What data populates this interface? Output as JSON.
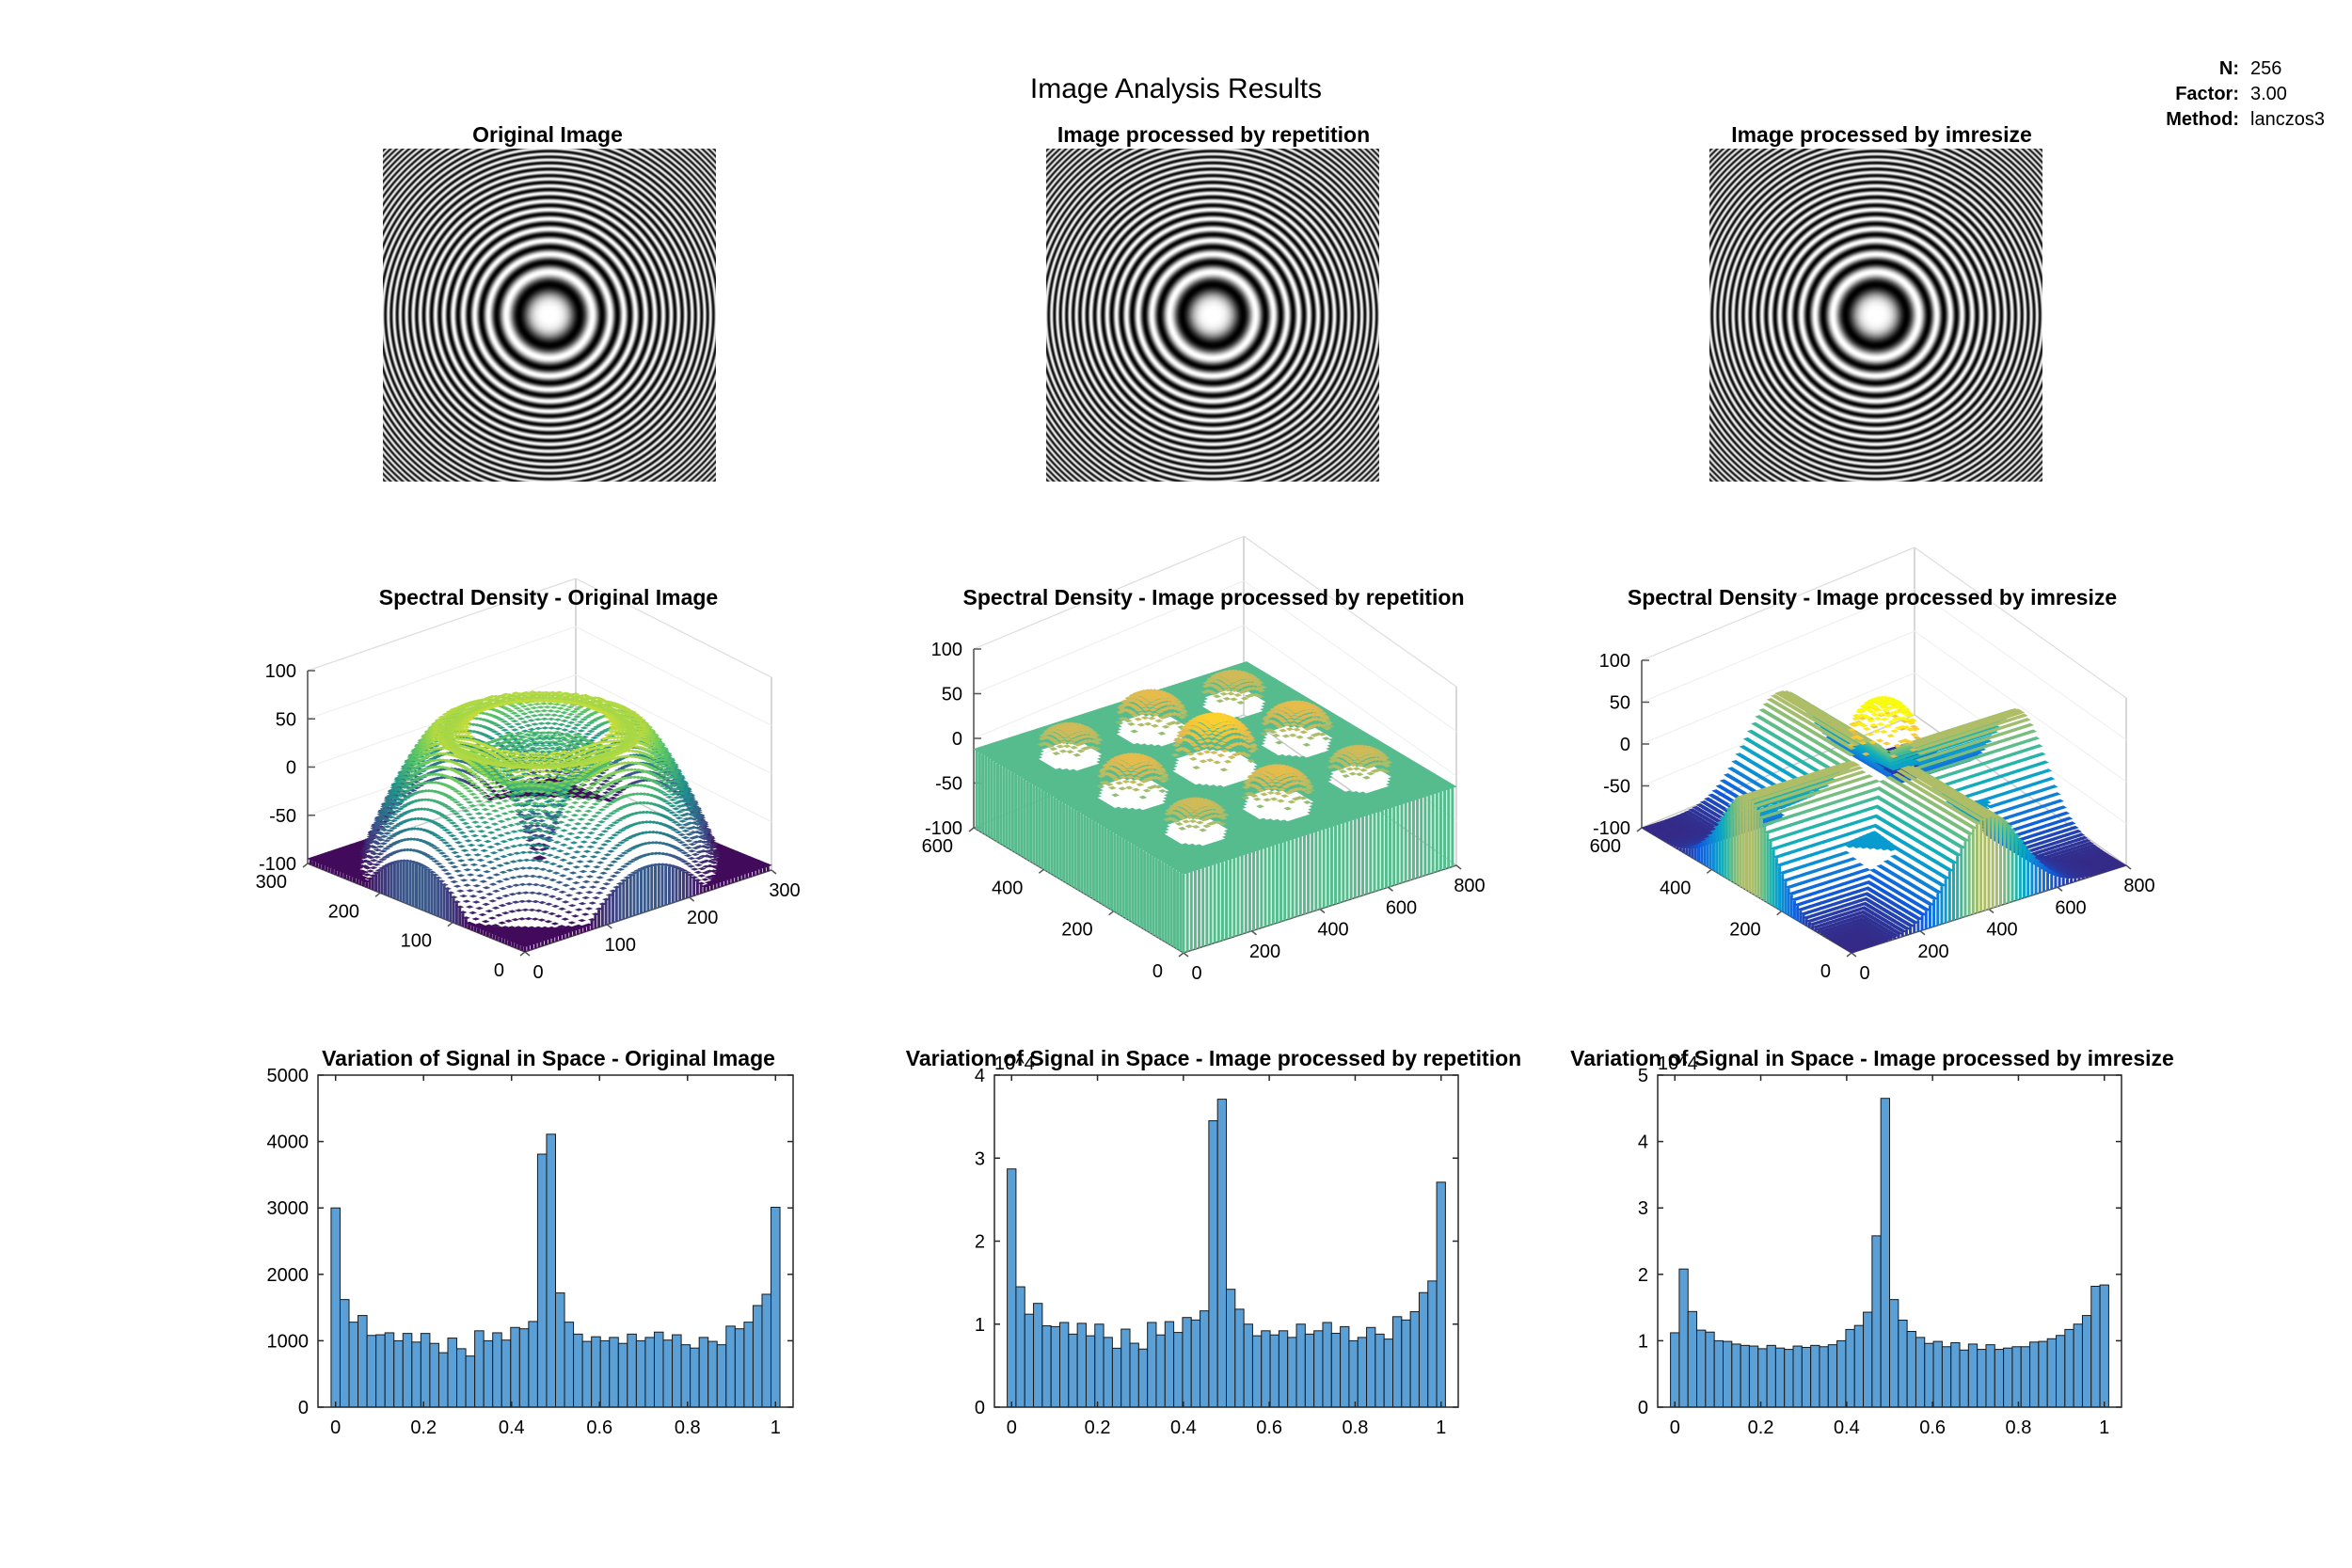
{
  "figure": {
    "title": "Image Analysis Results",
    "info": [
      {
        "label": "N:",
        "value": "256"
      },
      {
        "label": "Factor:",
        "value": "3.00"
      },
      {
        "label": "Method:",
        "value": "lanczos3"
      }
    ]
  },
  "chart_data": [
    {
      "type": "image",
      "title": "Original Image"
    },
    {
      "type": "image",
      "title": "Image processed by repetition"
    },
    {
      "type": "image",
      "title": "Image processed by imresize"
    },
    {
      "type": "surface",
      "title": "Spectral Density - Original Image",
      "z_ticks": [
        "100",
        "50",
        "0",
        "-50",
        "-100"
      ],
      "zlim": [
        -100,
        100
      ],
      "x_ticks": [
        "0",
        "100",
        "200",
        "300"
      ],
      "y_ticks": [
        "0",
        "100",
        "200",
        "300"
      ]
    },
    {
      "type": "surface",
      "title": "Spectral Density - Image processed by repetition",
      "z_ticks": [
        "100",
        "50",
        "0",
        "-50",
        "-100"
      ],
      "zlim": [
        -100,
        100
      ],
      "x_ticks": [
        "0",
        "200",
        "400",
        "600",
        "800"
      ],
      "y_ticks": [
        "0",
        "200",
        "400",
        "600"
      ]
    },
    {
      "type": "surface",
      "title": "Spectral Density - Image processed by imresize",
      "z_ticks": [
        "100",
        "50",
        "0",
        "-50",
        "-100"
      ],
      "zlim": [
        -100,
        100
      ],
      "x_ticks": [
        "0",
        "200",
        "400",
        "600",
        "800"
      ],
      "y_ticks": [
        "0",
        "200",
        "400",
        "600"
      ]
    },
    {
      "type": "bar",
      "title": "Variation of Signal in Space - Original Image",
      "exponent": "",
      "xlim": [
        -0.04,
        1.04
      ],
      "ylim": [
        0,
        5000
      ],
      "x_ticks": [
        "0",
        "0.2",
        "0.4",
        "0.6",
        "0.8",
        "1"
      ],
      "y_ticks": [
        "0",
        "1000",
        "2000",
        "3000",
        "4000",
        "5000"
      ],
      "values": [
        3000,
        1620,
        1280,
        1380,
        1080,
        1090,
        1120,
        1000,
        1110,
        980,
        1110,
        960,
        820,
        1040,
        880,
        770,
        1150,
        1000,
        1120,
        1010,
        1200,
        1180,
        1290,
        3810,
        4110,
        1720,
        1280,
        1100,
        990,
        1060,
        1000,
        1050,
        960,
        1100,
        1000,
        1050,
        1130,
        1010,
        1090,
        940,
        890,
        1050,
        990,
        940,
        1220,
        1180,
        1280,
        1530,
        1700,
        3010
      ]
    },
    {
      "type": "bar",
      "title": "Variation of Signal in Space - Image processed by repetition",
      "exponent": "10^4",
      "xlim": [
        -0.04,
        1.04
      ],
      "ylim": [
        0,
        4
      ],
      "x_ticks": [
        "0",
        "0.2",
        "0.4",
        "0.6",
        "0.8",
        "1"
      ],
      "y_ticks": [
        "0",
        "1",
        "2",
        "3",
        "4"
      ],
      "values": [
        2.87,
        1.45,
        1.12,
        1.25,
        0.98,
        0.97,
        1.02,
        0.88,
        1.01,
        0.86,
        1.0,
        0.84,
        0.71,
        0.94,
        0.77,
        0.7,
        1.02,
        0.87,
        1.03,
        0.9,
        1.08,
        1.05,
        1.16,
        3.45,
        3.71,
        1.42,
        1.18,
        1.0,
        0.86,
        0.92,
        0.87,
        0.92,
        0.84,
        1.0,
        0.88,
        0.92,
        1.02,
        0.89,
        0.97,
        0.8,
        0.84,
        0.96,
        0.88,
        0.82,
        1.09,
        1.05,
        1.15,
        1.38,
        1.52,
        2.71
      ]
    },
    {
      "type": "bar",
      "title": "Variation of Signal in Space - Image processed by imresize",
      "exponent": "10^4",
      "xlim": [
        -0.04,
        1.04
      ],
      "ylim": [
        0,
        5
      ],
      "x_ticks": [
        "0",
        "0.2",
        "0.4",
        "0.6",
        "0.8",
        "1"
      ],
      "y_ticks": [
        "0",
        "1",
        "2",
        "3",
        "4",
        "5"
      ],
      "values": [
        1.12,
        2.08,
        1.44,
        1.16,
        1.13,
        1.0,
        0.99,
        0.95,
        0.93,
        0.92,
        0.88,
        0.93,
        0.89,
        0.87,
        0.92,
        0.9,
        0.93,
        0.91,
        0.94,
        1.0,
        1.17,
        1.23,
        1.43,
        2.58,
        4.65,
        1.62,
        1.31,
        1.14,
        1.05,
        0.96,
        0.99,
        0.91,
        0.97,
        0.86,
        0.95,
        0.87,
        0.94,
        0.87,
        0.89,
        0.91,
        0.91,
        0.98,
        0.99,
        1.03,
        1.08,
        1.17,
        1.25,
        1.38,
        1.82,
        1.84
      ]
    }
  ]
}
